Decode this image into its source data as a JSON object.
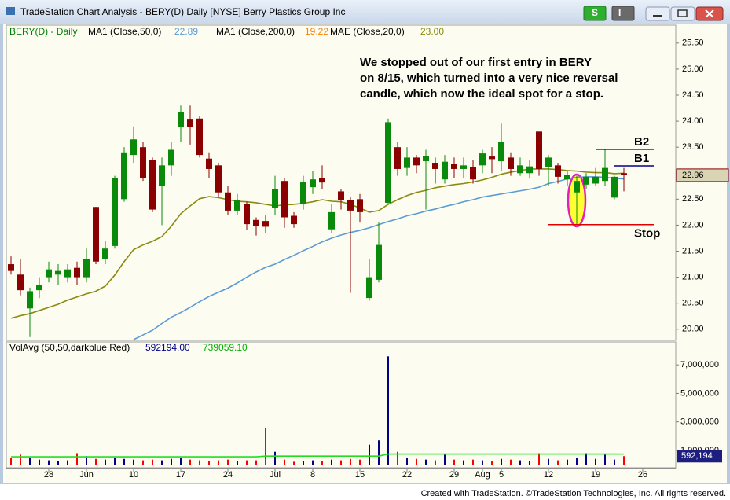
{
  "window": {
    "title": "TradeStation Chart Analysis - BERY(D) Daily [NYSE] Berry Plastics Group Inc",
    "buttons": [
      "S",
      "I"
    ]
  },
  "footer": "Created with TradeStation. ©TradeStation Technologies, Inc. All rights reserved.",
  "chart_data": [
    {
      "type": "candlestick",
      "title": "BERY(D) - Daily",
      "title_color": "#008000",
      "categories": [
        null,
        null,
        null,
        null,
        "28",
        null,
        null,
        null,
        "Jun",
        null,
        null,
        null,
        null,
        "10",
        null,
        null,
        null,
        null,
        "17",
        null,
        null,
        null,
        null,
        "24",
        null,
        null,
        null,
        null,
        "Jul",
        null,
        null,
        null,
        "8",
        null,
        null,
        null,
        null,
        "15",
        null,
        null,
        null,
        null,
        "22",
        null,
        null,
        null,
        null,
        "29",
        null,
        null,
        "Aug",
        null,
        "5",
        null,
        null,
        null,
        null,
        "12",
        null,
        null,
        null,
        null,
        "19",
        null,
        null,
        null,
        null,
        "26"
      ],
      "open": [
        21.25,
        21.05,
        20.4,
        20.75,
        21.0,
        21.05,
        21.0,
        21.18,
        21.0,
        22.35,
        21.35,
        21.6,
        22.5,
        23.35,
        23.5,
        23.25,
        22.75,
        23.15,
        23.88,
        24.03,
        24.05,
        23.28,
        23.15,
        22.63,
        22.28,
        22.4,
        22.1,
        22.08,
        22.33,
        22.85,
        22.18,
        22.4,
        22.73,
        22.9,
        21.92,
        22.65,
        22.48,
        22.5,
        20.6,
        20.95,
        22.43,
        23.5,
        23.1,
        23.3,
        23.23,
        23.2,
        22.88,
        23.18,
        23.08,
        23.12,
        23.15,
        23.32,
        23.23,
        23.3,
        23.0,
        23.0,
        23.8,
        23.12,
        23.15,
        22.88,
        22.63,
        22.78,
        22.8,
        22.85,
        22.53,
        23.0,
        null,
        null
      ],
      "high": [
        21.4,
        21.35,
        20.8,
        21.0,
        21.3,
        21.25,
        21.25,
        21.3,
        21.55,
        22.35,
        21.7,
        22.95,
        23.5,
        23.9,
        23.6,
        23.3,
        23.3,
        23.6,
        24.3,
        24.3,
        24.1,
        23.4,
        23.2,
        22.75,
        22.6,
        22.45,
        22.15,
        22.2,
        22.95,
        22.9,
        22.25,
        22.95,
        23.05,
        23.15,
        22.4,
        22.7,
        22.55,
        22.6,
        21.35,
        22.05,
        24.05,
        23.6,
        23.5,
        23.35,
        23.45,
        23.3,
        23.35,
        23.3,
        23.3,
        23.25,
        23.45,
        23.5,
        23.95,
        23.4,
        23.3,
        23.25,
        23.8,
        23.35,
        23.2,
        23.05,
        22.95,
        23.0,
        23.1,
        23.45,
        22.95,
        23.1,
        null,
        null
      ],
      "low": [
        21.05,
        20.65,
        19.85,
        20.6,
        20.9,
        20.85,
        20.9,
        20.85,
        20.9,
        21.25,
        21.25,
        21.55,
        22.45,
        23.2,
        22.85,
        22.25,
        22.0,
        22.95,
        23.6,
        23.55,
        23.3,
        22.9,
        22.55,
        22.2,
        22.2,
        21.9,
        21.8,
        21.85,
        22.2,
        21.95,
        21.95,
        22.3,
        22.6,
        22.7,
        21.85,
        22.3,
        20.7,
        22.05,
        20.55,
        20.9,
        22.4,
        22.95,
        22.95,
        23.0,
        22.3,
        22.8,
        22.8,
        22.9,
        22.9,
        22.8,
        23.0,
        23.0,
        23.05,
        22.95,
        22.95,
        22.9,
        22.95,
        22.75,
        22.8,
        22.75,
        22.0,
        22.7,
        22.75,
        22.75,
        22.5,
        22.65,
        null,
        null
      ],
      "close": [
        21.12,
        20.75,
        20.73,
        20.85,
        21.15,
        21.12,
        21.15,
        21.0,
        21.35,
        21.3,
        21.55,
        22.9,
        23.4,
        23.65,
        22.9,
        22.3,
        23.15,
        23.45,
        24.18,
        23.88,
        23.35,
        23.08,
        22.63,
        22.28,
        22.48,
        22.02,
        21.98,
        21.97,
        22.7,
        22.15,
        22.02,
        22.83,
        22.88,
        22.82,
        22.25,
        22.48,
        22.28,
        22.25,
        21.0,
        21.62,
        23.98,
        23.08,
        23.3,
        23.15,
        23.33,
        23.08,
        23.22,
        23.08,
        23.15,
        22.88,
        23.38,
        23.27,
        23.6,
        23.08,
        23.15,
        23.13,
        23.08,
        23.3,
        22.93,
        22.97,
        22.85,
        22.93,
        22.93,
        23.1,
        22.93,
        22.96,
        null,
        null
      ],
      "up_color": "#0a8a0a",
      "down_color": "#8b0000",
      "ylim": [
        19.8,
        25.83
      ],
      "yticks": [
        {
          "value": 20,
          "label": "20.00"
        },
        {
          "value": 20.5,
          "label": "20.50"
        },
        {
          "value": 21,
          "label": "21.00"
        },
        {
          "value": 21.5,
          "label": "21.50"
        },
        {
          "value": 22,
          "label": "22.00"
        },
        {
          "value": 22.5,
          "label": "22.50"
        },
        {
          "value": 23,
          "label": "23.00"
        },
        {
          "value": 23.5,
          "label": "23.50"
        },
        {
          "value": 24,
          "label": "24.00"
        },
        {
          "value": 24.5,
          "label": "24.50"
        },
        {
          "value": 25,
          "label": "25.00"
        },
        {
          "value": 25.5,
          "label": "25.50"
        }
      ],
      "series": [
        {
          "name": "MA1 (Close,50,0)",
          "color": "#5b9bd5",
          "current": 22.89,
          "values": [
            null,
            null,
            null,
            null,
            null,
            null,
            null,
            null,
            null,
            null,
            null,
            null,
            null,
            19.8,
            19.89,
            19.98,
            20.11,
            20.23,
            20.32,
            20.42,
            20.53,
            20.63,
            20.71,
            20.79,
            20.89,
            21.0,
            21.1,
            21.19,
            21.25,
            21.34,
            21.42,
            21.51,
            21.59,
            21.68,
            21.75,
            21.81,
            21.86,
            21.9,
            21.95,
            22.01,
            22.07,
            22.12,
            22.18,
            22.22,
            22.27,
            22.31,
            22.36,
            22.4,
            22.45,
            22.49,
            22.54,
            22.57,
            22.6,
            22.63,
            22.66,
            22.69,
            22.73,
            22.8,
            22.84,
            22.89,
            22.92,
            22.93,
            22.93,
            22.92,
            22.9,
            22.89,
            null,
            null
          ]
        },
        {
          "name": "MA1 (Close,200,0)",
          "color": "#ff8000",
          "current": 19.22
        },
        {
          "name": "MAE (Close,20,0)",
          "color": "#8a8a10",
          "current": {
            "value": 23,
            "label": "23.00"
          },
          "values": [
            20.21,
            20.26,
            20.3,
            20.36,
            20.42,
            20.48,
            20.56,
            20.62,
            20.68,
            20.73,
            20.83,
            21.04,
            21.3,
            21.53,
            21.62,
            21.69,
            21.78,
            21.98,
            22.22,
            22.37,
            22.51,
            22.55,
            22.53,
            22.49,
            22.46,
            22.45,
            22.43,
            22.4,
            22.37,
            22.39,
            22.4,
            22.42,
            22.45,
            22.49,
            22.46,
            22.45,
            22.4,
            22.33,
            22.25,
            22.28,
            22.4,
            22.49,
            22.57,
            22.63,
            22.67,
            22.72,
            22.75,
            22.78,
            22.8,
            22.83,
            22.87,
            22.92,
            22.98,
            23.02,
            23.05,
            23.08,
            23.08,
            23.08,
            23.07,
            23.05,
            23.04,
            23.02,
            23.01,
            23.01,
            22.99,
            23.0,
            null,
            null
          ]
        }
      ],
      "levels": [
        {
          "label": "B2",
          "value": 23.46,
          "color": "#00008b",
          "start": 62
        },
        {
          "label": "B1",
          "value": 23.14,
          "color": "#00008b",
          "start": 64
        },
        {
          "label": "Stop",
          "value": 22.01,
          "color": "#e00000",
          "start": 57
        }
      ],
      "note": [
        "We stopped out of our first entry in BERY",
        "on 8/15, which turned into a very nice reversal",
        "candle, which now the ideal spot for a stop."
      ]
    },
    {
      "type": "bar",
      "title": "VolAvg (50,50,darkblue,Red)",
      "values": [
        450000,
        700000,
        500000,
        350000,
        300000,
        250000,
        300000,
        800000,
        600000,
        400000,
        350000,
        450000,
        400000,
        350000,
        300000,
        350000,
        300000,
        400000,
        450000,
        350000,
        300000,
        250000,
        300000,
        350000,
        250000,
        300000,
        300000,
        2600000,
        900000,
        350000,
        200000,
        250000,
        300000,
        250000,
        350000,
        300000,
        400000,
        350000,
        1400000,
        1700000,
        7600000,
        900000,
        450000,
        400000,
        350000,
        300000,
        700000,
        350000,
        300000,
        350000,
        300000,
        250000,
        400000,
        350000,
        300000,
        250000,
        800000,
        400000,
        300000,
        350000,
        450000,
        800000,
        400000,
        700000,
        350000,
        592194,
        null,
        null
      ],
      "up_color": "#00008b",
      "down_color": "#ff0000",
      "average": {
        "color": "#22dd22",
        "values": [
          550000,
          550000,
          550000,
          550000,
          550000,
          550000,
          550000,
          550000,
          550000,
          550000,
          550000,
          550000,
          550000,
          550000,
          550000,
          550000,
          550000,
          550000,
          550000,
          550000,
          550000,
          550000,
          550000,
          550000,
          550000,
          550000,
          550000,
          600000,
          600000,
          600000,
          600000,
          600000,
          600000,
          600000,
          600000,
          600000,
          600000,
          600000,
          600000,
          600000,
          740000,
          740000,
          740000,
          740000,
          740000,
          740000,
          740000,
          740000,
          740000,
          740000,
          740000,
          740000,
          740000,
          740000,
          740000,
          740000,
          740000,
          740000,
          740000,
          740000,
          740000,
          740000,
          740000,
          740000,
          740000,
          739059.1,
          null,
          null
        ]
      },
      "readouts": [
        {
          "value": 592194,
          "label": "592194.00",
          "color": "#00008b"
        },
        {
          "value": 739059.1,
          "label": "739059.10",
          "color": "#00b000"
        }
      ],
      "last_tag": {
        "value": 592194,
        "label": "592,194"
      },
      "ylim": [
        -220000,
        8500000
      ],
      "yticks": [
        {
          "value": 1000000,
          "label": "1,000,000"
        },
        {
          "value": 3000000,
          "label": "3,000,000"
        },
        {
          "value": 5000000,
          "label": "5,000,000"
        },
        {
          "value": 7000000,
          "label": "7,000,000"
        }
      ]
    }
  ]
}
